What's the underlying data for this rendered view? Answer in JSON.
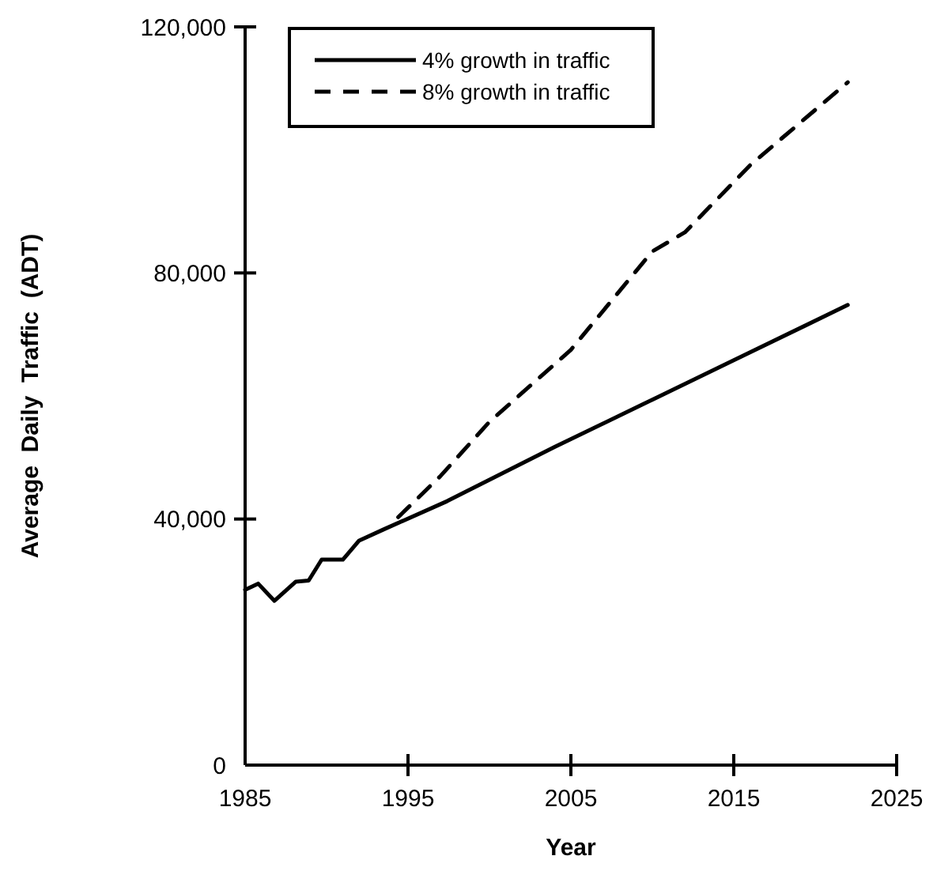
{
  "chart_data": {
    "type": "line",
    "xlabel": "Year",
    "ylabel": "Average  Daily  Traffic  (ADT)",
    "xlim": [
      1985,
      2025
    ],
    "xticks": [
      1985,
      1995,
      2005,
      2015,
      2025
    ],
    "ylim": [
      0,
      120000
    ],
    "yticks": [
      0,
      {
        "value": 40000,
        "label": "40,000"
      },
      {
        "value": 80000,
        "label": "80,000"
      },
      {
        "value": 120000,
        "label": "120,000"
      }
    ],
    "grid": false,
    "legend": "top",
    "series": [
      {
        "name": "4% growth in traffic",
        "color": "#000000",
        "line_style": "solid",
        "x": [
          1985,
          1985.8,
          1986.8,
          1988.1,
          1988.9,
          1989.7,
          1991,
          1992,
          1993.5,
          1997.4,
          2004,
          2010,
          2015,
          2022
        ],
        "values": [
          28500,
          29500,
          26700,
          29800,
          30000,
          33400,
          33400,
          36500,
          38300,
          42900,
          51700,
          59400,
          65800,
          74800
        ]
      },
      {
        "name": "8% growth in traffic",
        "color": "#000000",
        "line_style": "dashed",
        "x": [
          1994.4,
          1997,
          2000,
          2005,
          2010,
          2012,
          2016,
          2022
        ],
        "values": [
          40300,
          47000,
          55800,
          67500,
          83500,
          86600,
          97500,
          111000
        ]
      }
    ]
  }
}
